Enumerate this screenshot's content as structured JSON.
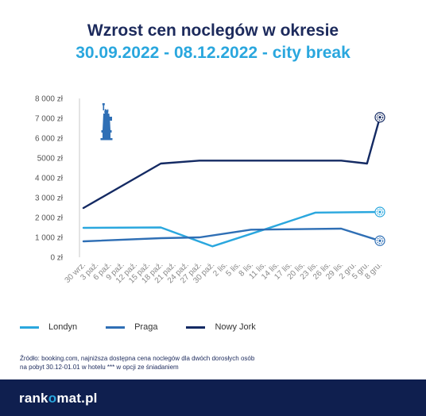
{
  "header": {
    "title": "Wzrost cen noclegów w okresie",
    "subtitle": "30.09.2022 - 08.12.2022 - city break"
  },
  "chart_data": {
    "type": "line",
    "x": [
      "30 wrz.",
      "3 paź.",
      "6 paź.",
      "9 paź.",
      "12 paź.",
      "15 paź.",
      "18 paź.",
      "21 paź.",
      "24 paź.",
      "27 paź.",
      "30 paź.",
      "2 lis.",
      "5 lis.",
      "8 lis.",
      "11 lis.",
      "14 lis.",
      "17 lis.",
      "20 lis.",
      "23 lis.",
      "26 lis.",
      "29 lis.",
      "2 gru.",
      "5 gru.",
      "8 gru."
    ],
    "ylim": [
      0,
      8000
    ],
    "yticks": [
      "0 zł",
      "1 000 zł",
      "2 000 zł",
      "3 000 zł",
      "4 000 zł",
      "5000 zł",
      "6 000 zł",
      "7 000 zł",
      "8 000 zł"
    ],
    "grid": false,
    "legend": "bottom",
    "series": [
      {
        "name": "Londyn",
        "color": "#2aa7de",
        "points": [
          [
            0,
            1480
          ],
          [
            6,
            1500
          ],
          [
            10,
            550
          ],
          [
            14,
            1390
          ],
          [
            18,
            2250
          ],
          [
            23,
            2280
          ]
        ]
      },
      {
        "name": "Praga",
        "color": "#2f6fb5",
        "points": [
          [
            0,
            800
          ],
          [
            6,
            960
          ],
          [
            9,
            1000
          ],
          [
            13,
            1390
          ],
          [
            20,
            1440
          ],
          [
            23,
            830
          ]
        ]
      },
      {
        "name": "Nowy Jork",
        "color": "#142a63",
        "points": [
          [
            0,
            2480
          ],
          [
            6,
            4720
          ],
          [
            9,
            4870
          ],
          [
            20,
            4870
          ],
          [
            22,
            4720
          ],
          [
            23,
            7050
          ]
        ]
      }
    ],
    "annotation_icon": "statue-of-liberty-icon"
  },
  "source_note": {
    "line1": "Źródło: booking.com, najniższa dostępna cena noclegów dla dwóch dorosłych osób",
    "line2": "na pobyt 30.12-01.01 w hotelu *** w opcji ze śniadaniem"
  },
  "footer": {
    "logo_before": "rank",
    "logo_o": "o",
    "logo_after": "mat.pl",
    "background": "#0f1f4f"
  }
}
